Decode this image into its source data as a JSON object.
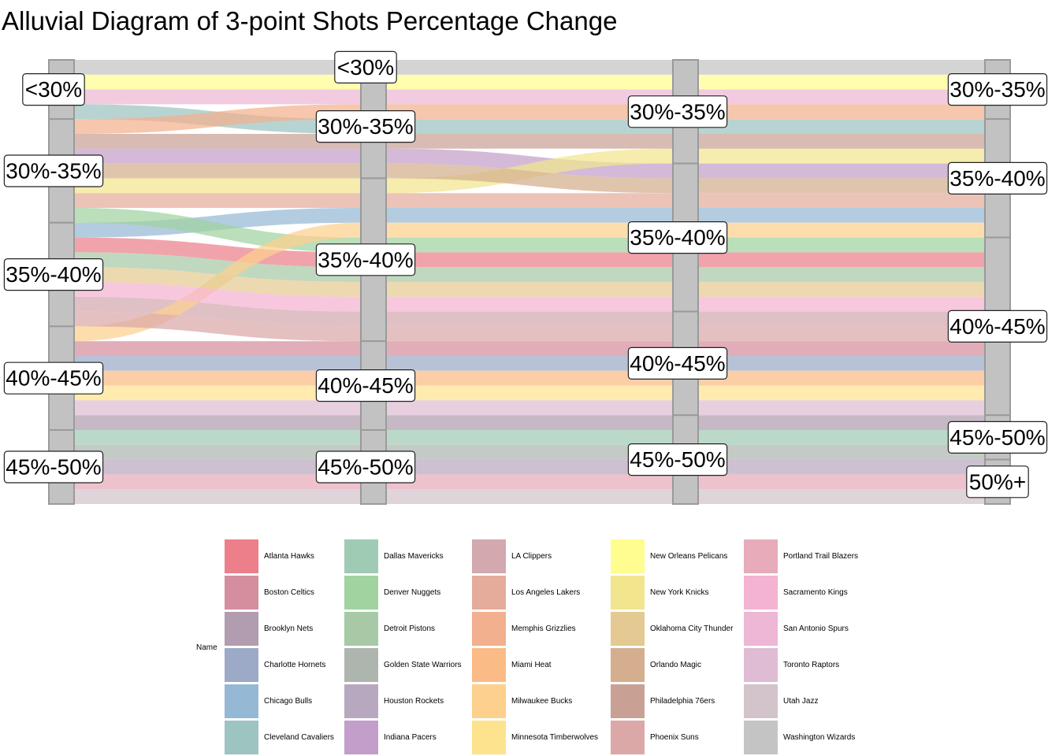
{
  "chart_data": {
    "type": "alluvial",
    "title": "Alluvial Diagram of 3-point Shots Percentage Change",
    "axes": 4,
    "legend": {
      "title": "Name",
      "position": "bottom"
    },
    "teams": [
      {
        "name": "Atlanta Hawks",
        "color": "#ec7f8a",
        "path": [
          "35%-40%",
          "35%-40%",
          "35%-40%",
          "40%-45%"
        ]
      },
      {
        "name": "Boston Celtics",
        "color": "#d48e9d",
        "path": [
          "40%-45%",
          "40%-45%",
          "40%-45%",
          "40%-45%"
        ]
      },
      {
        "name": "Brooklyn Nets",
        "color": "#b29caf",
        "path": [
          "40%-45%",
          "40%-45%",
          "45%-50%",
          "45%-50%"
        ]
      },
      {
        "name": "Charlotte Hornets",
        "color": "#9daac7",
        "path": [
          "40%-45%",
          "40%-45%",
          "40%-45%",
          "40%-45%"
        ]
      },
      {
        "name": "Chicago Bulls",
        "color": "#95b9d4",
        "path": [
          "35%-40%",
          "35%-40%",
          "35%-40%",
          "35%-40%"
        ]
      },
      {
        "name": "Cleveland Cavaliers",
        "color": "#9dc4c1",
        "path": [
          "<30%",
          "30%-35%",
          "30%-35%",
          "35%-40%"
        ]
      },
      {
        "name": "Dallas Mavericks",
        "color": "#9fcab3",
        "path": [
          "45%-50%",
          "45%-50%",
          "45%-50%",
          "45%-50%"
        ]
      },
      {
        "name": "Denver Nuggets",
        "color": "#a0d39f",
        "path": [
          "30%-35%",
          "35%-40%",
          "35%-40%",
          "40%-45%"
        ]
      },
      {
        "name": "Detroit Pistons",
        "color": "#a7c9a6",
        "path": [
          "35%-40%",
          "35%-40%",
          "35%-40%",
          "40%-45%"
        ]
      },
      {
        "name": "Golden State Warriors",
        "color": "#adb5ae",
        "path": [
          "45%-50%",
          "45%-50%",
          "45%-50%",
          "45%-50%"
        ]
      },
      {
        "name": "Houston Rockets",
        "color": "#b8a8bf",
        "path": [
          "45%-50%",
          "45%-50%",
          "45%-50%",
          "50%+"
        ]
      },
      {
        "name": "Indiana Pacers",
        "color": "#c39ecb",
        "path": [
          "30%-35%",
          "30%-35%",
          "35%-40%",
          "35%-40%"
        ]
      },
      {
        "name": "LA Clippers",
        "color": "#d3a8af",
        "path": [
          "35%-40%",
          "35%-40%",
          "40%-45%",
          "40%-45%"
        ]
      },
      {
        "name": "Los Angeles Lakers",
        "color": "#e5ac9b",
        "path": [
          "30%-35%",
          "35%-40%",
          "35%-40%",
          "35%-40%"
        ]
      },
      {
        "name": "Memphis Grizzlies",
        "color": "#f2b08e",
        "path": [
          "30%-35%",
          "30%-35%",
          "30%-35%",
          "30%-35%"
        ]
      },
      {
        "name": "Miami Heat",
        "color": "#fbbb86",
        "path": [
          "40%-45%",
          "40%-45%",
          "40%-45%",
          "40%-45%"
        ]
      },
      {
        "name": "Milwaukee Bucks",
        "color": "#fdd08d",
        "path": [
          "40%-45%",
          "35%-40%",
          "35%-40%",
          "35%-40%"
        ]
      },
      {
        "name": "Minnesota Timberwolves",
        "color": "#fde38e",
        "path": [
          "40%-45%",
          "40%-45%",
          "40%-45%",
          "40%-45%"
        ]
      },
      {
        "name": "New Orleans Pelicans",
        "color": "#fffd8f",
        "path": [
          "<30%",
          "30%-35%",
          "30%-35%",
          "30%-35%"
        ]
      },
      {
        "name": "New York Knicks",
        "color": "#f1e58e",
        "path": [
          "30%-35%",
          "35%-40%",
          "30%-35%",
          "35%-40%"
        ]
      },
      {
        "name": "Oklahoma City Thunder",
        "color": "#e4ca92",
        "path": [
          "35%-40%",
          "35%-40%",
          "35%-40%",
          "40%-45%"
        ]
      },
      {
        "name": "Orlando Magic",
        "color": "#d4ae8e",
        "path": [
          "30%-35%",
          "30%-35%",
          "35%-40%",
          "35%-40%"
        ]
      },
      {
        "name": "Philadelphia 76ers",
        "color": "#c9a194",
        "path": [
          "30%-35%",
          "30%-35%",
          "30%-35%",
          "35%-40%"
        ]
      },
      {
        "name": "Phoenix Suns",
        "color": "#dba8a7",
        "path": [
          "35%-40%",
          "35%-40%",
          "40%-45%",
          "40%-45%"
        ]
      },
      {
        "name": "Portland Trail Blazers",
        "color": "#e7abba",
        "path": [
          "45%-50%",
          "45%-50%",
          "45%-50%",
          "50%+"
        ]
      },
      {
        "name": "Sacramento Kings",
        "color": "#f4b3d0",
        "path": [
          "35%-40%",
          "35%-40%",
          "35%-40%",
          "40%-45%"
        ]
      },
      {
        "name": "San Antonio Spurs",
        "color": "#edb7d5",
        "path": [
          "<30%",
          "30%-35%",
          "30%-35%",
          "30%-35%"
        ]
      },
      {
        "name": "Toronto Raptors",
        "color": "#dfbcd3",
        "path": [
          "40%-45%",
          "40%-45%",
          "40%-45%",
          "40%-45%"
        ]
      },
      {
        "name": "Utah Jazz",
        "color": "#d3c3cb",
        "path": [
          "45%-50%",
          "45%-50%",
          "45%-50%",
          "50%+"
        ]
      },
      {
        "name": "Washington Wizards",
        "color": "#c4c4c4",
        "path": [
          "<30%",
          "<30%",
          "30%-35%",
          "30%-35%"
        ]
      }
    ],
    "strata_order": [
      "<30%",
      "30%-35%",
      "35%-40%",
      "40%-45%",
      "45%-50%",
      "50%+"
    ]
  }
}
